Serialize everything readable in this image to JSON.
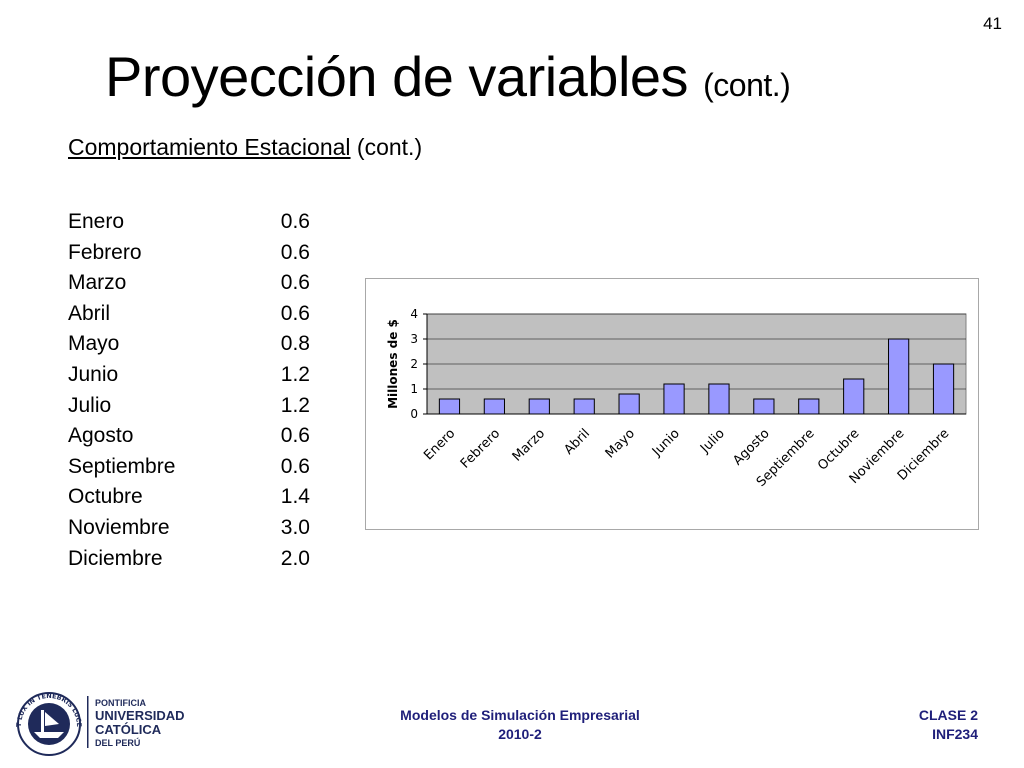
{
  "slide_number": "41",
  "title": {
    "main": "Proyección de variables",
    "suffix": "(cont.)"
  },
  "subtitle": {
    "underlined": "Comportamiento Estacional",
    "rest": "(cont.)"
  },
  "table": [
    {
      "month": "Enero",
      "value": "0.6"
    },
    {
      "month": "Febrero",
      "value": "0.6"
    },
    {
      "month": "Marzo",
      "value": "0.6"
    },
    {
      "month": "Abril",
      "value": "0.6"
    },
    {
      "month": "Mayo",
      "value": "0.8"
    },
    {
      "month": "Junio",
      "value": "1.2"
    },
    {
      "month": "Julio",
      "value": "1.2"
    },
    {
      "month": "Agosto",
      "value": "0.6"
    },
    {
      "month": "Septiembre",
      "value": "0.6"
    },
    {
      "month": "Octubre",
      "value": "1.4"
    },
    {
      "month": "Noviembre",
      "value": "3.0"
    },
    {
      "month": "Diciembre",
      "value": "2.0"
    }
  ],
  "chart_data": {
    "type": "bar",
    "categories": [
      "Enero",
      "Febrero",
      "Marzo",
      "Abril",
      "Mayo",
      "Junio",
      "Julio",
      "Agosto",
      "Septiembre",
      "Octubre",
      "Noviembre",
      "Diciembre"
    ],
    "values": [
      0.6,
      0.6,
      0.6,
      0.6,
      0.8,
      1.2,
      1.2,
      0.6,
      0.6,
      1.4,
      3.0,
      2.0
    ],
    "ylabel": "Millones de $",
    "ylim": [
      0,
      4
    ],
    "yticks": [
      0,
      1,
      2,
      3,
      4
    ],
    "grid": true,
    "legend": "none",
    "colors": {
      "bar": "#9999ff",
      "plot_bg": "#c0c0c0",
      "bar_border": "#000000"
    }
  },
  "footer": {
    "logo_name": "PUCP crest",
    "logo_motto": "ET LUX IN TENEBRIS LUCET",
    "logo_year": "MCMXVII",
    "logo_line1": "PONTIFICIA",
    "logo_line2": "UNIVERSIDAD",
    "logo_line3": "CATÓLICA",
    "logo_line4": "DEL PERÚ",
    "course": "Modelos de Simulación Empresarial",
    "term": "2010-2",
    "class_label": "CLASE 2",
    "code": "INF234",
    "text_color": "#1f1f7a"
  }
}
